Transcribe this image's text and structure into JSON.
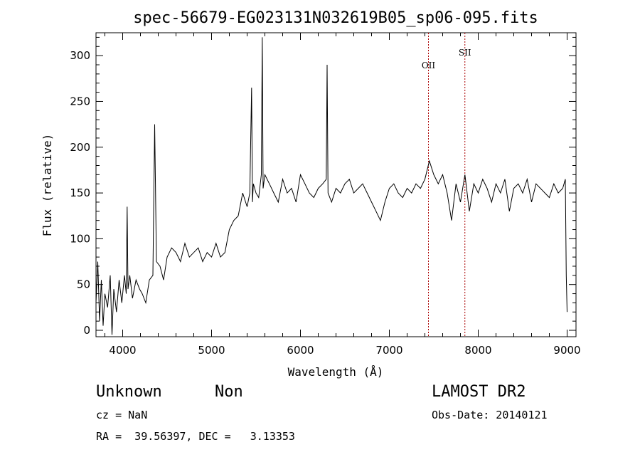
{
  "chart_data": {
    "type": "line",
    "title": "spec-56679-EG023131N032619B05_sp06-095.fits",
    "xlabel": "Wavelength (Å)",
    "ylabel": "Flux (relative)",
    "xlim": [
      3700,
      9100
    ],
    "ylim": [
      -7,
      325
    ],
    "x_ticks": [
      4000,
      5000,
      6000,
      7000,
      8000,
      9000
    ],
    "y_ticks": [
      0,
      50,
      100,
      150,
      200,
      250,
      300
    ],
    "grid": false,
    "line_color": "#000000",
    "marker_color": "#aa0000",
    "spectral_lines": [
      {
        "name": "OII",
        "wavelength": 7440
      },
      {
        "name": "SII",
        "wavelength": 7850
      }
    ],
    "series": [
      {
        "x": [
          3700,
          3720,
          3740,
          3760,
          3780,
          3800,
          3830,
          3860,
          3880,
          3900,
          3930,
          3960,
          3990,
          4020,
          4040,
          4050,
          4060,
          4080,
          4110,
          4150,
          4190,
          4220,
          4260,
          4300,
          4340,
          4360,
          4380,
          4420,
          4460,
          4500,
          4550,
          4600,
          4650,
          4700,
          4750,
          4800,
          4850,
          4900,
          4950,
          5000,
          5050,
          5100,
          5150,
          5200,
          5250,
          5300,
          5350,
          5400,
          5430,
          5450,
          5460,
          5470,
          5500,
          5530,
          5560,
          5570,
          5580,
          5600,
          5650,
          5700,
          5750,
          5800,
          5850,
          5900,
          5950,
          6000,
          6050,
          6100,
          6150,
          6200,
          6250,
          6290,
          6300,
          6310,
          6350,
          6400,
          6450,
          6500,
          6550,
          6600,
          6650,
          6700,
          6750,
          6800,
          6850,
          6900,
          6950,
          7000,
          7050,
          7100,
          7150,
          7200,
          7250,
          7300,
          7350,
          7400,
          7450,
          7500,
          7550,
          7600,
          7650,
          7700,
          7750,
          7800,
          7850,
          7900,
          7950,
          8000,
          8050,
          8100,
          8150,
          8200,
          8250,
          8300,
          8350,
          8400,
          8450,
          8500,
          8550,
          8600,
          8650,
          8700,
          8750,
          8800,
          8850,
          8900,
          8950,
          8980,
          8990,
          9000
        ],
        "y": [
          30,
          75,
          10,
          55,
          5,
          40,
          25,
          60,
          -5,
          45,
          20,
          55,
          30,
          60,
          40,
          135,
          45,
          60,
          35,
          55,
          45,
          40,
          30,
          55,
          60,
          225,
          75,
          70,
          55,
          80,
          90,
          85,
          75,
          95,
          80,
          85,
          90,
          75,
          85,
          80,
          95,
          80,
          85,
          110,
          120,
          125,
          150,
          135,
          150,
          265,
          140,
          160,
          150,
          145,
          170,
          320,
          155,
          170,
          160,
          150,
          140,
          165,
          150,
          155,
          140,
          170,
          160,
          150,
          145,
          155,
          160,
          165,
          290,
          150,
          140,
          155,
          150,
          160,
          165,
          150,
          155,
          160,
          150,
          140,
          130,
          120,
          140,
          155,
          160,
          150,
          145,
          155,
          150,
          160,
          155,
          165,
          185,
          170,
          160,
          170,
          150,
          120,
          160,
          140,
          170,
          130,
          160,
          150,
          165,
          155,
          140,
          160,
          150,
          165,
          130,
          155,
          160,
          150,
          165,
          140,
          160,
          155,
          150,
          145,
          160,
          150,
          155,
          165,
          60,
          20
        ]
      }
    ]
  },
  "info": {
    "class_label": "Unknown",
    "subclass_label": "Non",
    "survey": "LAMOST DR2",
    "cz": "cz = NaN",
    "obs_date": "Obs-Date: 20140121",
    "radec": "RA =  39.56397, DEC =   3.13353"
  }
}
